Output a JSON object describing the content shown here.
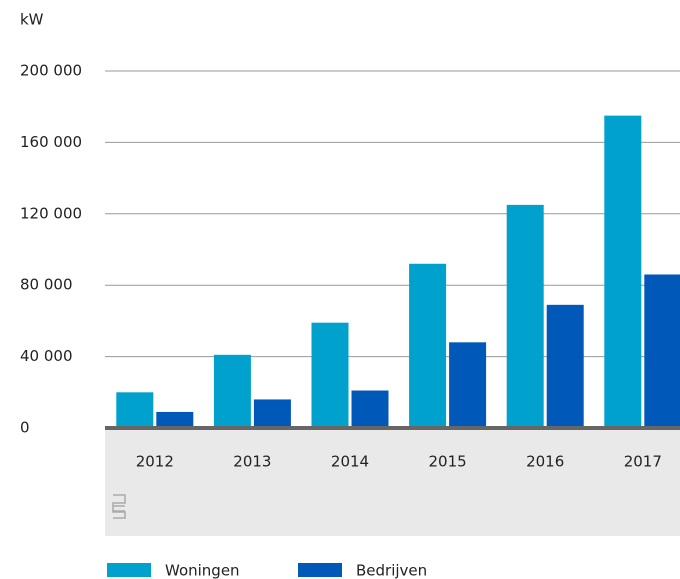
{
  "chart_data": {
    "type": "bar",
    "y_label": "kW",
    "categories": [
      "2012",
      "2013",
      "2014",
      "2015",
      "2016",
      "2017"
    ],
    "series": [
      {
        "name": "Woningen",
        "color": "#00a1cd",
        "values": [
          20000,
          41000,
          59000,
          92000,
          125000,
          175000
        ]
      },
      {
        "name": "Bedrijven",
        "color": "#0058b8",
        "values": [
          9000,
          16000,
          21000,
          48000,
          69000,
          86000
        ]
      }
    ],
    "ylim": [
      0,
      200000
    ],
    "yticks": [
      0,
      {
        "value": 40000,
        "label": "40 000"
      },
      {
        "value": 80000,
        "label": "80 000"
      },
      {
        "value": 120000,
        "label": "120 000"
      },
      {
        "value": 160000,
        "label": "160 000"
      },
      {
        "value": 200000,
        "label": "200 000"
      }
    ],
    "grid": true,
    "legend": "bottom"
  }
}
